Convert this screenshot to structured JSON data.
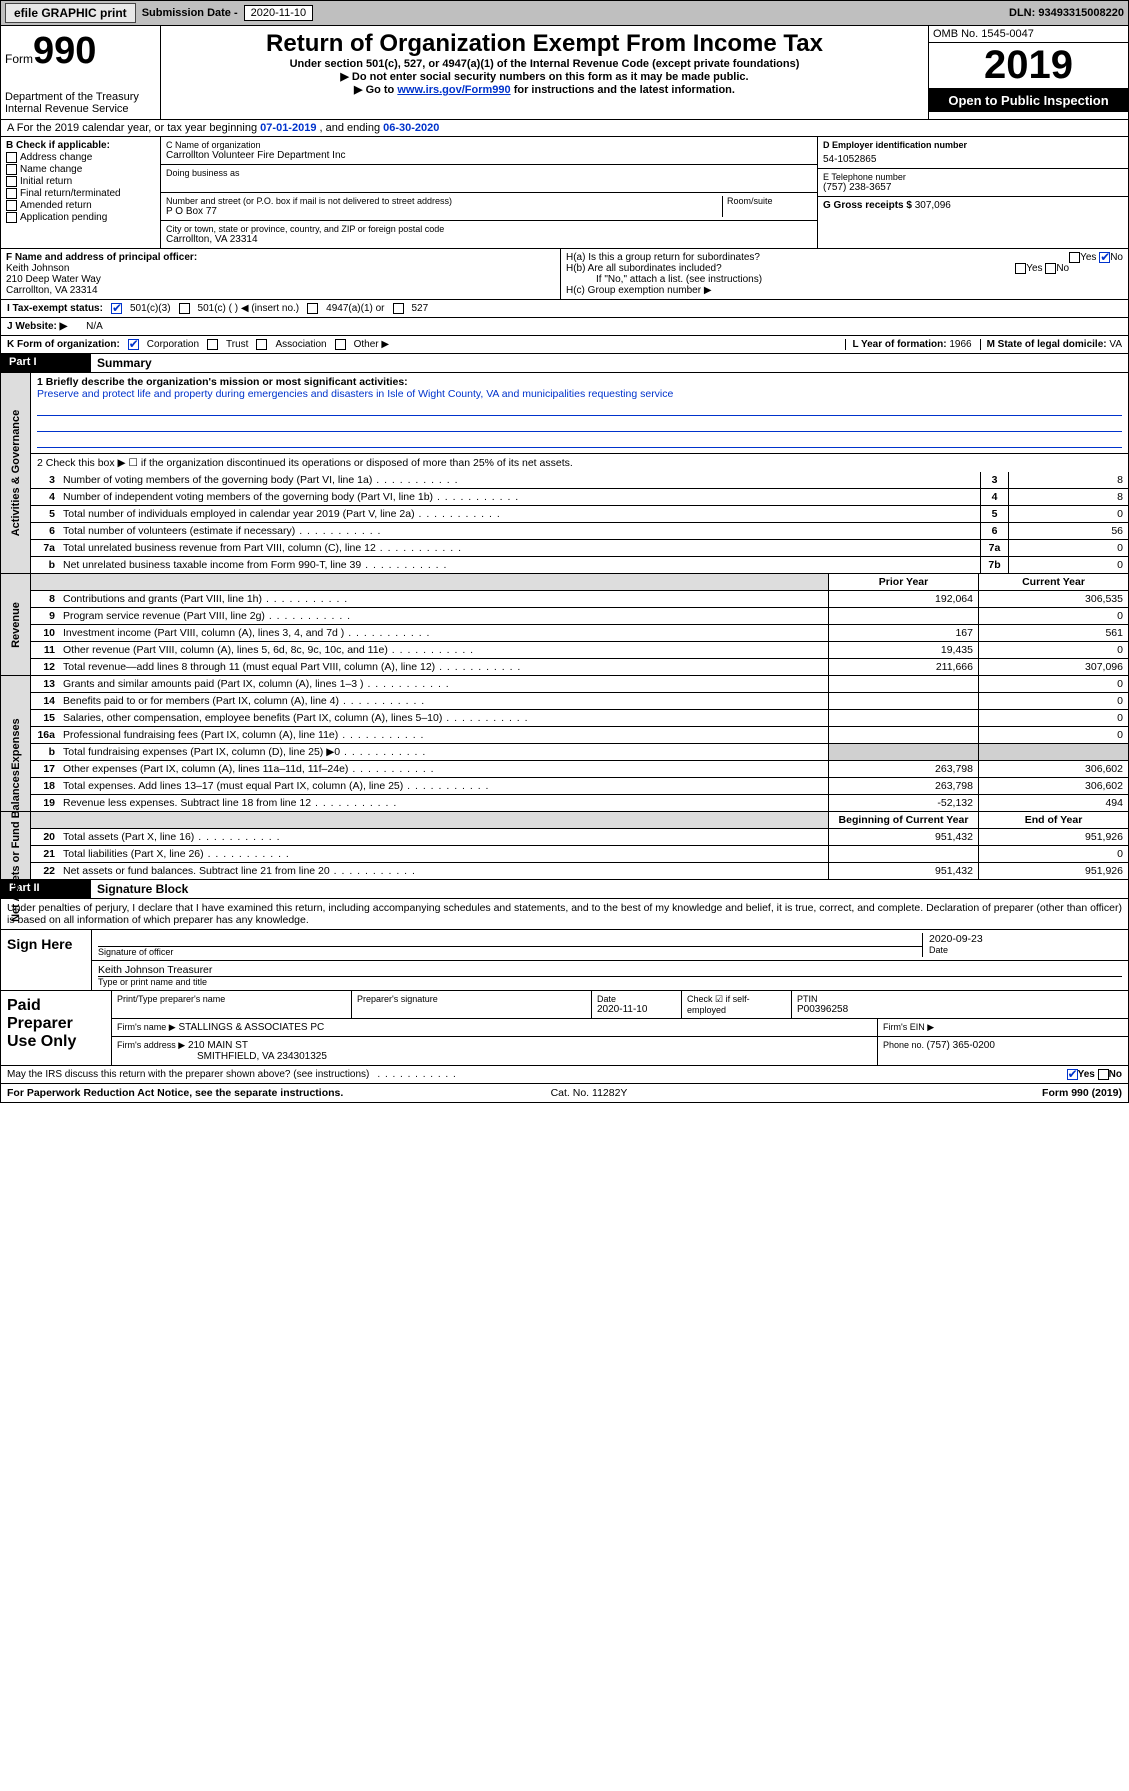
{
  "topbar": {
    "efile": "efile GRAPHIC print",
    "subdate_label": "Submission Date - ",
    "subdate": "2020-11-10",
    "dln": "DLN: 93493315008220"
  },
  "header": {
    "form_word": "Form",
    "form_no": "990",
    "dept1": "Department of the Treasury",
    "dept2": "Internal Revenue Service",
    "title": "Return of Organization Exempt From Income Tax",
    "sub1": "Under section 501(c), 527, or 4947(a)(1) of the Internal Revenue Code (except private foundations)",
    "sub2": "▶ Do not enter social security numbers on this form as it may be made public.",
    "sub3a": "▶ Go to ",
    "sub3link": "www.irs.gov/Form990",
    "sub3b": " for instructions and the latest information.",
    "omb": "OMB No. 1545-0047",
    "year": "2019",
    "open": "Open to Public Inspection"
  },
  "rowA": {
    "prefix": "A For the 2019 calendar year, or tax year beginning ",
    "begin": "07-01-2019",
    "mid": " , and ending ",
    "end": "06-30-2020"
  },
  "B": {
    "label": "B Check if applicable:",
    "opts": [
      "Address change",
      "Name change",
      "Initial return",
      "Final return/terminated",
      "Amended return",
      "Application pending"
    ]
  },
  "C": {
    "name_lbl": "C Name of organization",
    "name": "Carrollton Volunteer Fire Department Inc",
    "dba_lbl": "Doing business as",
    "addr_lbl": "Number and street (or P.O. box if mail is not delivered to street address)",
    "room_lbl": "Room/suite",
    "addr": "P O Box 77",
    "city_lbl": "City or town, state or province, country, and ZIP or foreign postal code",
    "city": "Carrollton, VA  23314"
  },
  "D": {
    "lbl": "D Employer identification number",
    "val": "54-1052865"
  },
  "E": {
    "lbl": "E Telephone number",
    "val": "(757) 238-3657"
  },
  "G": {
    "lbl": "G Gross receipts $ ",
    "val": "307,096"
  },
  "F": {
    "lbl": "F Name and address of principal officer:",
    "name": "Keith Johnson",
    "addr1": "210 Deep Water Way",
    "addr2": "Carrollton, VA  23314"
  },
  "H": {
    "a": "H(a)  Is this a group return for subordinates?",
    "b": "H(b)  Are all subordinates included?",
    "note": "If \"No,\" attach a list. (see instructions)",
    "c": "H(c)  Group exemption number ▶"
  },
  "I": {
    "lbl": "I   Tax-exempt status:",
    "o1": "501(c)(3)",
    "o2": "501(c) (   ) ◀ (insert no.)",
    "o3": "4947(a)(1) or",
    "o4": "527"
  },
  "J": {
    "lbl": "J   Website: ▶",
    "val": "N/A"
  },
  "K": {
    "lbl": "K Form of organization:",
    "opts": [
      "Corporation",
      "Trust",
      "Association",
      "Other ▶"
    ]
  },
  "L": {
    "lbl": "L Year of formation: ",
    "val": "1966"
  },
  "M": {
    "lbl": "M State of legal domicile: ",
    "val": "VA"
  },
  "part1": {
    "hdr": "Part I",
    "title": "Summary"
  },
  "p1": {
    "l1_lbl": "1  Briefly describe the organization's mission or most significant activities:",
    "l1_txt": "Preserve and protect life and property during emergencies and disasters in Isle of Wight County, VA and municipalities requesting service",
    "l2": "2   Check this box ▶ ☐  if the organization discontinued its operations or disposed of more than 25% of its net assets.",
    "vside_ag": "Activities & Governance",
    "vside_rev": "Revenue",
    "vside_exp": "Expenses",
    "vside_na": "Net Assets or Fund Balances",
    "lines_ag": [
      {
        "n": "3",
        "d": "Number of voting members of the governing body (Part VI, line 1a)",
        "box": "3",
        "v": "8"
      },
      {
        "n": "4",
        "d": "Number of independent voting members of the governing body (Part VI, line 1b)",
        "box": "4",
        "v": "8"
      },
      {
        "n": "5",
        "d": "Total number of individuals employed in calendar year 2019 (Part V, line 2a)",
        "box": "5",
        "v": "0"
      },
      {
        "n": "6",
        "d": "Total number of volunteers (estimate if necessary)",
        "box": "6",
        "v": "56"
      },
      {
        "n": "7a",
        "d": "Total unrelated business revenue from Part VIII, column (C), line 12",
        "box": "7a",
        "v": "0"
      },
      {
        "n": "b",
        "d": "Net unrelated business taxable income from Form 990-T, line 39",
        "box": "7b",
        "v": "0"
      }
    ],
    "col_prior": "Prior Year",
    "col_curr": "Current Year",
    "lines_rev": [
      {
        "n": "8",
        "d": "Contributions and grants (Part VIII, line 1h)",
        "p": "192,064",
        "c": "306,535"
      },
      {
        "n": "9",
        "d": "Program service revenue (Part VIII, line 2g)",
        "p": "",
        "c": "0"
      },
      {
        "n": "10",
        "d": "Investment income (Part VIII, column (A), lines 3, 4, and 7d )",
        "p": "167",
        "c": "561"
      },
      {
        "n": "11",
        "d": "Other revenue (Part VIII, column (A), lines 5, 6d, 8c, 9c, 10c, and 11e)",
        "p": "19,435",
        "c": "0"
      },
      {
        "n": "12",
        "d": "Total revenue—add lines 8 through 11 (must equal Part VIII, column (A), line 12)",
        "p": "211,666",
        "c": "307,096"
      }
    ],
    "lines_exp": [
      {
        "n": "13",
        "d": "Grants and similar amounts paid (Part IX, column (A), lines 1–3 )",
        "p": "",
        "c": "0"
      },
      {
        "n": "14",
        "d": "Benefits paid to or for members (Part IX, column (A), line 4)",
        "p": "",
        "c": "0"
      },
      {
        "n": "15",
        "d": "Salaries, other compensation, employee benefits (Part IX, column (A), lines 5–10)",
        "p": "",
        "c": "0"
      },
      {
        "n": "16a",
        "d": "Professional fundraising fees (Part IX, column (A), line 11e)",
        "p": "",
        "c": "0"
      },
      {
        "n": "b",
        "d": "Total fundraising expenses (Part IX, column (D), line 25) ▶0",
        "p": "SHADE",
        "c": "SHADE"
      },
      {
        "n": "17",
        "d": "Other expenses (Part IX, column (A), lines 11a–11d, 11f–24e)",
        "p": "263,798",
        "c": "306,602"
      },
      {
        "n": "18",
        "d": "Total expenses. Add lines 13–17 (must equal Part IX, column (A), line 25)",
        "p": "263,798",
        "c": "306,602"
      },
      {
        "n": "19",
        "d": "Revenue less expenses. Subtract line 18 from line 12",
        "p": "-52,132",
        "c": "494"
      }
    ],
    "col_bcy": "Beginning of Current Year",
    "col_eoy": "End of Year",
    "lines_na": [
      {
        "n": "20",
        "d": "Total assets (Part X, line 16)",
        "p": "951,432",
        "c": "951,926"
      },
      {
        "n": "21",
        "d": "Total liabilities (Part X, line 26)",
        "p": "",
        "c": "0"
      },
      {
        "n": "22",
        "d": "Net assets or fund balances. Subtract line 21 from line 20",
        "p": "951,432",
        "c": "951,926"
      }
    ]
  },
  "part2": {
    "hdr": "Part II",
    "title": "Signature Block"
  },
  "sig": {
    "decl": "Under penalties of perjury, I declare that I have examined this return, including accompanying schedules and statements, and to the best of my knowledge and belief, it is true, correct, and complete. Declaration of preparer (other than officer) is based on all information of which preparer has any knowledge.",
    "sign_here": "Sign Here",
    "sigoff": "Signature of officer",
    "date": "2020-09-23",
    "date_lbl": "Date",
    "name": "Keith Johnson  Treasurer",
    "name_lbl": "Type or print name and title",
    "paid": "Paid Preparer Use Only",
    "p_name_lbl": "Print/Type preparer's name",
    "p_sig_lbl": "Preparer's signature",
    "p_date_lbl": "Date",
    "p_date": "2020-11-10",
    "p_chk": "Check ☑ if self-employed",
    "ptin_lbl": "PTIN",
    "ptin": "P00396258",
    "firm_name_lbl": "Firm's name    ▶",
    "firm_name": "STALLINGS & ASSOCIATES PC",
    "firm_ein_lbl": "Firm's EIN ▶",
    "firm_addr_lbl": "Firm's address ▶",
    "firm_addr1": "210 MAIN ST",
    "firm_addr2": "SMITHFIELD, VA  234301325",
    "phone_lbl": "Phone no. ",
    "phone": "(757) 365-0200",
    "discuss": "May the IRS discuss this return with the preparer shown above? (see instructions)",
    "yes": "Yes",
    "no": "No"
  },
  "footer": {
    "left": "For Paperwork Reduction Act Notice, see the separate instructions.",
    "mid": "Cat. No. 11282Y",
    "right": "Form 990 (2019)"
  },
  "colors": {
    "link": "#0033cc",
    "check": "#006400"
  }
}
